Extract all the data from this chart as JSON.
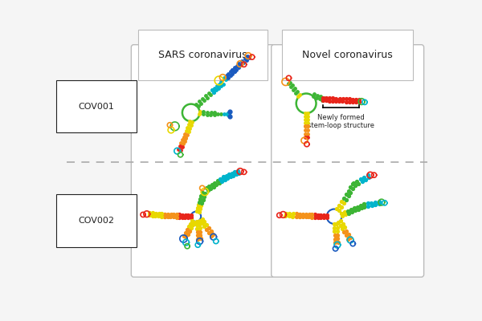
{
  "title_left": "SARS coronavirus",
  "title_right": "Novel coronavirus",
  "label_top": "COV001",
  "label_bottom": "COV002",
  "annotation_text": "Newly formed\nstem-loop structure",
  "bg_color": "#f5f5f5",
  "box_color": "#bbbbbb",
  "text_color": "#222222",
  "dashed_color": "#aaaaaa",
  "colors": {
    "red": "#e8251a",
    "orange": "#f4921a",
    "yellow": "#e8d800",
    "green": "#3db535",
    "cyan": "#00b4cc",
    "blue": "#1a5abf"
  }
}
